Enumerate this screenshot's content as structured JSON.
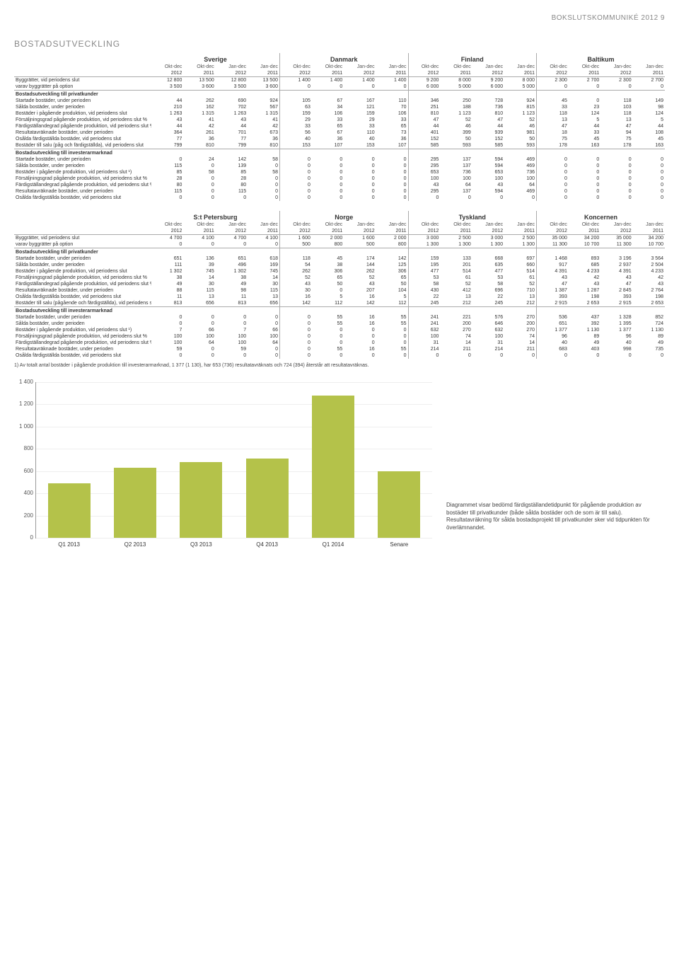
{
  "header": "BOKSLUTSKOMMUNIKÉ 2012   9",
  "section_title": "BOSTADSUTVECKLING",
  "periods": [
    "Okt-dec",
    "Okt-dec",
    "Jan-dec",
    "Jan-dec"
  ],
  "years": [
    "2012",
    "2011",
    "2012",
    "2011"
  ],
  "table1": {
    "groups": [
      "Sverige",
      "Danmark",
      "Finland",
      "Baltikum"
    ],
    "rows": [
      {
        "label": "Byggrätter, vid periodens slut",
        "v": [
          "12 800",
          "13 500",
          "12 800",
          "13 500",
          "1 400",
          "1 400",
          "1 400",
          "1 400",
          "9 200",
          "8 000",
          "9 200",
          "8 000",
          "2 300",
          "2 700",
          "2 300",
          "2 700"
        ],
        "top": true
      },
      {
        "label": "varav byggrätter på option",
        "v": [
          "3 500",
          "3 600",
          "3 500",
          "3 600",
          "0",
          "0",
          "0",
          "0",
          "6 000",
          "5 000",
          "6 000",
          "5 000",
          "0",
          "0",
          "0",
          "0"
        ]
      },
      {
        "label": "Bostadsutveckling till privatkunder",
        "sec": true
      },
      {
        "label": "Startade bostäder, under perioden",
        "v": [
          "44",
          "262",
          "690",
          "924",
          "105",
          "67",
          "167",
          "110",
          "346",
          "250",
          "728",
          "924",
          "45",
          "0",
          "118",
          "149"
        ]
      },
      {
        "label": "Sålda bostäder, under perioden",
        "v": [
          "210",
          "162",
          "702",
          "567",
          "63",
          "34",
          "121",
          "70",
          "251",
          "188",
          "736",
          "815",
          "33",
          "23",
          "103",
          "98"
        ]
      },
      {
        "label": "Bostäder i pågående produktion, vid periodens slut",
        "v": [
          "1 263",
          "1 315",
          "1 263",
          "1 315",
          "159",
          "106",
          "159",
          "106",
          "810",
          "1 123",
          "810",
          "1 123",
          "118",
          "124",
          "118",
          "124"
        ]
      },
      {
        "label": "Försäljningsgrad pågående produktion, vid periodens slut %",
        "v": [
          "43",
          "41",
          "43",
          "41",
          "29",
          "33",
          "29",
          "33",
          "47",
          "52",
          "47",
          "52",
          "13",
          "5",
          "13",
          "5"
        ]
      },
      {
        "label": "Färdigställandegrad pågående produktion, vid periodens slut %",
        "v": [
          "44",
          "42",
          "44",
          "42",
          "33",
          "65",
          "33",
          "65",
          "44",
          "46",
          "44",
          "46",
          "47",
          "44",
          "47",
          "44"
        ]
      },
      {
        "label": "Resultatavräknade bostäder, under perioden",
        "v": [
          "364",
          "261",
          "701",
          "673",
          "56",
          "67",
          "110",
          "73",
          "401",
          "399",
          "939",
          "981",
          "18",
          "33",
          "94",
          "108"
        ]
      },
      {
        "label": "Osålda färdigställda bostäder, vid periodens slut",
        "v": [
          "77",
          "36",
          "77",
          "36",
          "40",
          "36",
          "40",
          "36",
          "152",
          "50",
          "152",
          "50",
          "75",
          "45",
          "75",
          "45"
        ]
      },
      {
        "label": "Bostäder till salu (påg och färdigställda), vid periodens slut",
        "v": [
          "799",
          "810",
          "799",
          "810",
          "153",
          "107",
          "153",
          "107",
          "585",
          "593",
          "585",
          "593",
          "178",
          "163",
          "178",
          "163"
        ]
      },
      {
        "label": "Bostadsutveckling till investerarmarknad",
        "sec": true
      },
      {
        "label": "Startade bostäder, under perioden",
        "v": [
          "0",
          "24",
          "142",
          "58",
          "0",
          "0",
          "0",
          "0",
          "295",
          "137",
          "594",
          "469",
          "0",
          "0",
          "0",
          "0"
        ]
      },
      {
        "label": "Sålda bostäder, under perioden",
        "v": [
          "115",
          "0",
          "139",
          "0",
          "0",
          "0",
          "0",
          "0",
          "295",
          "137",
          "594",
          "469",
          "0",
          "0",
          "0",
          "0"
        ]
      },
      {
        "label": "Bostäder i pågående produktion, vid periodens slut ¹)",
        "v": [
          "85",
          "58",
          "85",
          "58",
          "0",
          "0",
          "0",
          "0",
          "653",
          "736",
          "653",
          "736",
          "0",
          "0",
          "0",
          "0"
        ]
      },
      {
        "label": "Försäljningsgrad pågående produktion, vid periodens slut %",
        "v": [
          "28",
          "0",
          "28",
          "0",
          "0",
          "0",
          "0",
          "0",
          "100",
          "100",
          "100",
          "100",
          "0",
          "0",
          "0",
          "0"
        ]
      },
      {
        "label": "Färdigställandegrad pågående produktion, vid periodens slut %",
        "v": [
          "80",
          "0",
          "80",
          "0",
          "0",
          "0",
          "0",
          "0",
          "43",
          "64",
          "43",
          "64",
          "0",
          "0",
          "0",
          "0"
        ]
      },
      {
        "label": "Resultatavräknade bostäder, under perioden",
        "v": [
          "115",
          "0",
          "115",
          "0",
          "0",
          "0",
          "0",
          "0",
          "295",
          "137",
          "594",
          "469",
          "0",
          "0",
          "0",
          "0"
        ]
      },
      {
        "label": "Osålda färdigställda bostäder, vid periodens slut",
        "v": [
          "0",
          "0",
          "0",
          "0",
          "0",
          "0",
          "0",
          "0",
          "0",
          "0",
          "0",
          "0",
          "0",
          "0",
          "0",
          "0"
        ]
      }
    ]
  },
  "table2": {
    "groups": [
      "S:t Petersburg",
      "Norge",
      "Tyskland",
      "Koncernen"
    ],
    "rows": [
      {
        "label": "Byggrätter, vid periodens slut",
        "v": [
          "4 700",
          "4 100",
          "4 700",
          "4 100",
          "1 600",
          "2 000",
          "1 600",
          "2 000",
          "3 000",
          "2 500",
          "3 000",
          "2 500",
          "35 000",
          "34 200",
          "35 000",
          "34 200"
        ],
        "top": true
      },
      {
        "label": "varav byggrätter på option",
        "v": [
          "0",
          "0",
          "0",
          "0",
          "500",
          "800",
          "500",
          "800",
          "1 300",
          "1 300",
          "1 300",
          "1 300",
          "11 300",
          "10 700",
          "11 300",
          "10 700"
        ]
      },
      {
        "label": "Bostadsutveckling till privatkunder",
        "sec": true
      },
      {
        "label": "Startade bostäder, under perioden",
        "v": [
          "651",
          "136",
          "651",
          "618",
          "118",
          "45",
          "174",
          "142",
          "159",
          "133",
          "668",
          "697",
          "1 468",
          "893",
          "3 196",
          "3 564"
        ]
      },
      {
        "label": "Sålda bostäder, under perioden",
        "v": [
          "111",
          "39",
          "496",
          "169",
          "54",
          "38",
          "144",
          "125",
          "195",
          "201",
          "635",
          "660",
          "917",
          "685",
          "2 937",
          "2 504"
        ]
      },
      {
        "label": "Bostäder i pågående produktion, vid periodens slut",
        "v": [
          "1 302",
          "745",
          "1 302",
          "745",
          "262",
          "306",
          "262",
          "306",
          "477",
          "514",
          "477",
          "514",
          "4 391",
          "4 233",
          "4 391",
          "4 233"
        ]
      },
      {
        "label": "Försäljningsgrad pågående produktion, vid periodens slut %",
        "v": [
          "38",
          "14",
          "38",
          "14",
          "52",
          "65",
          "52",
          "65",
          "53",
          "61",
          "53",
          "61",
          "43",
          "42",
          "43",
          "42"
        ]
      },
      {
        "label": "Färdigställandegrad pågående produktion, vid periodens slut %",
        "v": [
          "49",
          "30",
          "49",
          "30",
          "43",
          "50",
          "43",
          "50",
          "58",
          "52",
          "58",
          "52",
          "47",
          "43",
          "47",
          "43"
        ]
      },
      {
        "label": "Resultatavräknade bostäder, under perioden",
        "v": [
          "88",
          "115",
          "98",
          "115",
          "30",
          "0",
          "207",
          "104",
          "430",
          "412",
          "696",
          "710",
          "1 387",
          "1 287",
          "2 845",
          "2 764"
        ]
      },
      {
        "label": "Osålda färdigställda bostäder, vid periodens slut",
        "v": [
          "11",
          "13",
          "11",
          "13",
          "16",
          "5",
          "16",
          "5",
          "22",
          "13",
          "22",
          "13",
          "393",
          "198",
          "393",
          "198"
        ]
      },
      {
        "label": "Bostäder till salu (pågående och färdigställda), vid periodens slut",
        "v": [
          "813",
          "656",
          "813",
          "656",
          "142",
          "112",
          "142",
          "112",
          "245",
          "212",
          "245",
          "212",
          "2 915",
          "2 653",
          "2 915",
          "2 653"
        ]
      },
      {
        "label": "Bostadsutveckling till investerarmarknad",
        "sec": true
      },
      {
        "label": "Startade bostäder, under perioden",
        "v": [
          "0",
          "0",
          "0",
          "0",
          "0",
          "55",
          "16",
          "55",
          "241",
          "221",
          "576",
          "270",
          "536",
          "437",
          "1 328",
          "852"
        ]
      },
      {
        "label": "Sålda bostäder, under perioden",
        "v": [
          "0",
          "0",
          "0",
          "0",
          "0",
          "55",
          "16",
          "55",
          "241",
          "200",
          "646",
          "200",
          "651",
          "392",
          "1 395",
          "724"
        ]
      },
      {
        "label": "Bostäder i pågående produktion, vid periodens slut ¹)",
        "v": [
          "7",
          "66",
          "7",
          "66",
          "0",
          "0",
          "0",
          "0",
          "632",
          "270",
          "632",
          "270",
          "1 377",
          "1 130",
          "1 377",
          "1 130"
        ]
      },
      {
        "label": "Försäljningsgrad pågående produktion, vid periodens slut %",
        "v": [
          "100",
          "100",
          "100",
          "100",
          "0",
          "0",
          "0",
          "0",
          "100",
          "74",
          "100",
          "74",
          "96",
          "89",
          "96",
          "89"
        ]
      },
      {
        "label": "Färdigställandegrad pågående produktion, vid periodens slut %",
        "v": [
          "100",
          "64",
          "100",
          "64",
          "0",
          "0",
          "0",
          "0",
          "31",
          "14",
          "31",
          "14",
          "40",
          "49",
          "40",
          "49"
        ]
      },
      {
        "label": "Resultatavräknade bostäder, under perioden",
        "v": [
          "59",
          "0",
          "59",
          "0",
          "0",
          "55",
          "16",
          "55",
          "214",
          "211",
          "214",
          "211",
          "683",
          "403",
          "998",
          "735"
        ]
      },
      {
        "label": "Osålda färdigställda bostäder, vid periodens slut",
        "v": [
          "0",
          "0",
          "0",
          "0",
          "0",
          "0",
          "0",
          "0",
          "0",
          "0",
          "0",
          "0",
          "0",
          "0",
          "0",
          "0"
        ]
      }
    ]
  },
  "footnote": "1) Av totalt antal bostäder i pågående produktion till investerarmarknad, 1 377 (1 130), har 653 (736) resultatavräknats och 724 (394) återstår att resultatavräknas.",
  "chart": {
    "type": "bar",
    "categories": [
      "Q1 2013",
      "Q2 2013",
      "Q3 2013",
      "Q4 2013",
      "Q1 2014",
      "Senare"
    ],
    "values": [
      490,
      630,
      680,
      710,
      1280,
      600
    ],
    "bar_color": "#b4c24a",
    "ylim": [
      0,
      1400
    ],
    "ytick_step": 200,
    "background_color": "#ffffff",
    "grid_color": "#eeeeee",
    "caption": "Diagrammet visar bedömd färdigställandetidpunkt för pågående produktion av bostäder till privatkunder (både sålda bostäder och de som är till salu). Resultatavräkning för sålda bostadsprojekt till privatkunder sker vid tidpunkten för överlämnandet."
  }
}
